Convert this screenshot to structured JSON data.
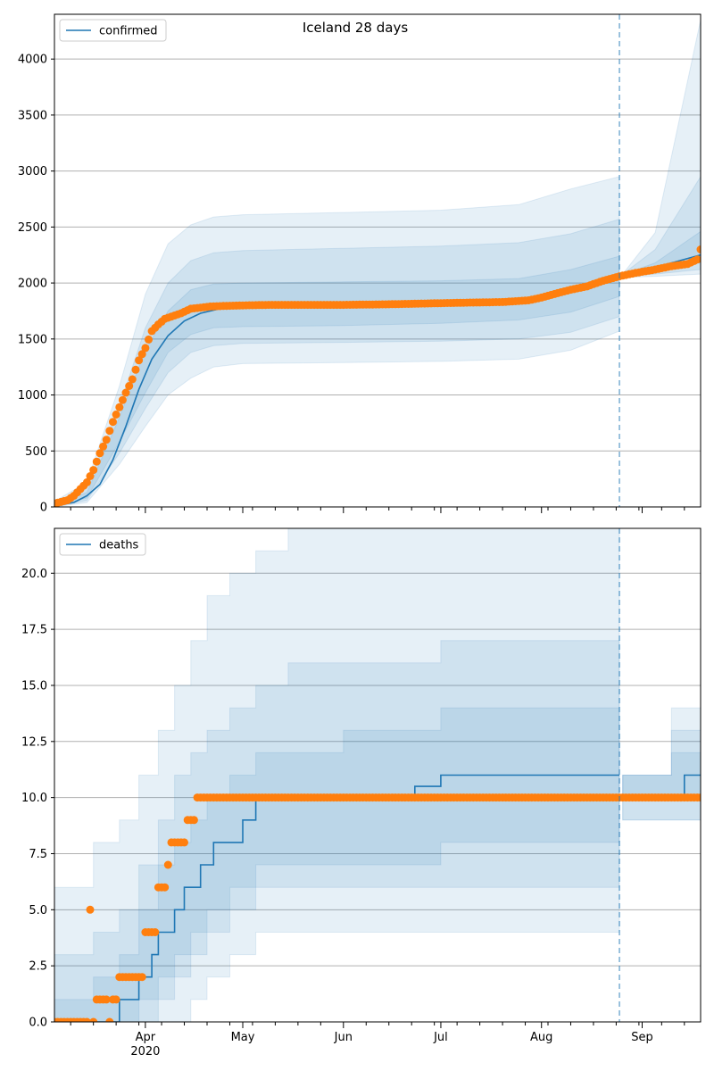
{
  "colors": {
    "line": "#1f77b4",
    "points": "#ff7f0e",
    "band": "#1f77b4",
    "grid": "#b0b0b0",
    "vline": "#1f77b4"
  },
  "chart_data": [
    {
      "type": "line",
      "title": "Iceland 28 days",
      "legend": "confirmed",
      "legend_position": "top-left",
      "grid": "horizontal",
      "xlim": [
        "2020-03-04",
        "2020-09-19"
      ],
      "ylim": [
        0,
        4400
      ],
      "yticks": [
        0,
        500,
        1000,
        1500,
        2000,
        2500,
        3000,
        3500,
        4000
      ],
      "ytick_labels": [
        "0",
        "500",
        "1000",
        "1500",
        "2000",
        "2500",
        "3000",
        "3500",
        "4000"
      ],
      "forecast_start": "2020-08-25",
      "median": {
        "x": [
          "2020-03-04",
          "2020-03-10",
          "2020-03-14",
          "2020-03-18",
          "2020-03-22",
          "2020-03-26",
          "2020-03-30",
          "2020-04-03",
          "2020-04-08",
          "2020-04-13",
          "2020-04-18",
          "2020-04-24",
          "2020-05-05",
          "2020-06-01",
          "2020-07-01",
          "2020-07-25",
          "2020-08-05",
          "2020-08-15",
          "2020-08-25",
          "2020-09-05",
          "2020-09-19"
        ],
        "y": [
          10,
          40,
          100,
          200,
          420,
          720,
          1050,
          1320,
          1530,
          1660,
          1730,
          1770,
          1790,
          1800,
          1820,
          1850,
          1900,
          1990,
          2070,
          2140,
          2250
        ]
      },
      "observed": {
        "x": [
          "2020-03-04",
          "2020-03-06",
          "2020-03-08",
          "2020-03-10",
          "2020-03-12",
          "2020-03-14",
          "2020-03-16",
          "2020-03-18",
          "2020-03-20",
          "2020-03-22",
          "2020-03-24",
          "2020-03-26",
          "2020-03-28",
          "2020-03-30",
          "2020-04-01",
          "2020-04-03",
          "2020-04-05",
          "2020-04-07",
          "2020-04-09",
          "2020-04-12",
          "2020-04-15",
          "2020-04-18",
          "2020-04-21",
          "2020-04-25",
          "2020-05-01",
          "2020-05-10",
          "2020-05-20",
          "2020-06-01",
          "2020-06-15",
          "2020-07-01",
          "2020-07-10",
          "2020-07-20",
          "2020-07-28",
          "2020-08-01",
          "2020-08-06",
          "2020-08-10",
          "2020-08-15",
          "2020-08-20",
          "2020-08-25",
          "2020-08-30",
          "2020-09-05",
          "2020-09-10",
          "2020-09-15",
          "2020-09-18",
          "2020-09-19"
        ],
        "y": [
          30,
          45,
          60,
          100,
          160,
          220,
          330,
          480,
          600,
          760,
          890,
          1020,
          1140,
          1310,
          1420,
          1570,
          1630,
          1680,
          1700,
          1730,
          1770,
          1780,
          1790,
          1795,
          1800,
          1805,
          1805,
          1805,
          1810,
          1820,
          1825,
          1830,
          1845,
          1870,
          1910,
          1940,
          1970,
          2020,
          2060,
          2090,
          2120,
          2150,
          2170,
          2210,
          2300
        ]
      },
      "bands": [
        {
          "x": [
            "2020-03-04",
            "2020-03-14",
            "2020-03-24",
            "2020-04-01",
            "2020-04-08",
            "2020-04-15",
            "2020-04-22",
            "2020-05-01",
            "2020-06-01",
            "2020-07-01",
            "2020-07-25",
            "2020-08-10",
            "2020-08-25",
            "2020-08-26",
            "2020-09-05",
            "2020-09-19"
          ],
          "lower": [
            0,
            40,
            380,
            720,
            1000,
            1150,
            1250,
            1280,
            1290,
            1300,
            1320,
            1400,
            1570,
            2050,
            2060,
            2080
          ],
          "upper": [
            50,
            220,
            1080,
            1900,
            2350,
            2520,
            2590,
            2610,
            2630,
            2650,
            2700,
            2840,
            2950,
            2080,
            2450,
            4350
          ]
        },
        {
          "x": [
            "2020-03-04",
            "2020-03-14",
            "2020-03-24",
            "2020-04-01",
            "2020-04-08",
            "2020-04-15",
            "2020-04-22",
            "2020-05-01",
            "2020-06-01",
            "2020-07-01",
            "2020-07-25",
            "2020-08-10",
            "2020-08-25",
            "2020-08-26",
            "2020-09-05",
            "2020-09-19"
          ],
          "lower": [
            0,
            60,
            480,
            880,
            1200,
            1380,
            1440,
            1460,
            1470,
            1480,
            1500,
            1560,
            1700,
            2060,
            2080,
            2120
          ],
          "upper": [
            35,
            170,
            900,
            1600,
            2000,
            2200,
            2270,
            2290,
            2310,
            2330,
            2360,
            2440,
            2570,
            2080,
            2300,
            2950
          ]
        },
        {
          "x": [
            "2020-03-04",
            "2020-03-14",
            "2020-03-24",
            "2020-04-01",
            "2020-04-08",
            "2020-04-15",
            "2020-04-22",
            "2020-05-01",
            "2020-06-01",
            "2020-07-01",
            "2020-07-25",
            "2020-08-10",
            "2020-08-25",
            "2020-08-26",
            "2020-09-05",
            "2020-09-19"
          ],
          "lower": [
            3,
            80,
            580,
            1020,
            1380,
            1540,
            1600,
            1610,
            1620,
            1640,
            1670,
            1740,
            1880,
            2065,
            2110,
            2180
          ],
          "upper": [
            22,
            130,
            800,
            1400,
            1750,
            1940,
            1990,
            2000,
            2010,
            2020,
            2040,
            2120,
            2240,
            2075,
            2180,
            2460
          ]
        }
      ],
      "xtick_labels": []
    },
    {
      "type": "line",
      "legend": "deaths",
      "legend_position": "top-left",
      "grid": "horizontal",
      "xlim": [
        "2020-03-04",
        "2020-09-19"
      ],
      "ylim": [
        0,
        22
      ],
      "yticks": [
        0,
        2.5,
        5,
        7.5,
        10,
        12.5,
        15,
        17.5,
        20
      ],
      "ytick_labels": [
        "0.0",
        "2.5",
        "5.0",
        "7.5",
        "10.0",
        "12.5",
        "15.0",
        "17.5",
        "20.0"
      ],
      "forecast_start": "2020-08-25",
      "xticks": [
        "2020-04-01",
        "2020-05-01",
        "2020-06-01",
        "2020-07-01",
        "2020-08-01",
        "2020-09-01"
      ],
      "xtick_labels": [
        "Apr",
        "May",
        "Jun",
        "Jul",
        "Aug",
        "Sep"
      ],
      "year_label": "2020",
      "median_steps": {
        "x": [
          "2020-03-04",
          "2020-03-16",
          "2020-03-24",
          "2020-03-30",
          "2020-04-01",
          "2020-04-03",
          "2020-04-05",
          "2020-04-10",
          "2020-04-13",
          "2020-04-18",
          "2020-04-22",
          "2020-04-26",
          "2020-05-01",
          "2020-05-05",
          "2020-06-01",
          "2020-06-23",
          "2020-07-01",
          "2020-08-25",
          "2020-08-26",
          "2020-09-14",
          "2020-09-19"
        ],
        "y": [
          0,
          0,
          1,
          2,
          2,
          3,
          4,
          5,
          6,
          7,
          8,
          8,
          9,
          10,
          10,
          10.5,
          11,
          11,
          10,
          11,
          11
        ]
      },
      "observed": {
        "x": [
          "2020-03-04",
          "2020-03-06",
          "2020-03-08",
          "2020-03-10",
          "2020-03-12",
          "2020-03-14",
          "2020-03-15",
          "2020-03-16",
          "2020-03-17",
          "2020-03-18",
          "2020-03-19",
          "2020-03-20",
          "2020-03-21",
          "2020-03-22",
          "2020-03-23",
          "2020-03-24",
          "2020-03-25",
          "2020-03-26",
          "2020-03-27",
          "2020-03-28",
          "2020-03-29",
          "2020-03-30",
          "2020-03-31",
          "2020-04-01",
          "2020-04-02",
          "2020-04-03",
          "2020-04-04",
          "2020-04-05",
          "2020-04-06",
          "2020-04-07",
          "2020-04-08",
          "2020-04-09",
          "2020-04-10",
          "2020-04-11",
          "2020-04-12",
          "2020-04-13",
          "2020-04-14",
          "2020-04-15",
          "2020-04-16",
          "2020-04-17",
          "2020-04-18",
          "2020-04-19",
          "2020-04-20",
          "2020-04-21",
          "2020-04-22",
          "2020-04-25",
          "2020-05-01",
          "2020-05-15",
          "2020-06-01",
          "2020-06-15",
          "2020-07-01",
          "2020-07-15",
          "2020-08-01",
          "2020-08-15",
          "2020-08-25",
          "2020-09-05",
          "2020-09-19"
        ],
        "y": [
          0,
          0,
          0,
          0,
          0,
          0,
          5,
          0,
          1,
          1,
          1,
          1,
          0,
          1,
          1,
          2,
          2,
          2,
          2,
          2,
          2,
          2,
          2,
          4,
          4,
          4,
          4,
          6,
          6,
          6,
          7,
          8,
          8,
          8,
          8,
          8,
          9,
          9,
          9,
          10,
          10,
          10,
          10,
          10,
          10,
          10,
          10,
          10,
          10,
          10,
          10,
          10,
          10,
          10,
          10,
          10,
          10
        ]
      },
      "bands_steps": [
        {
          "x": [
            "2020-03-04",
            "2020-03-16",
            "2020-03-24",
            "2020-03-30",
            "2020-04-05",
            "2020-04-10",
            "2020-04-15",
            "2020-04-20",
            "2020-04-27",
            "2020-05-05",
            "2020-05-15",
            "2020-06-01",
            "2020-07-01",
            "2020-08-25",
            "2020-08-26",
            "2020-09-10",
            "2020-09-19"
          ],
          "lower": [
            0,
            0,
            0,
            0,
            0,
            0,
            1,
            2,
            3,
            4,
            4,
            4,
            4,
            4,
            9,
            9,
            9
          ],
          "upper": [
            6,
            8,
            9,
            11,
            13,
            15,
            17,
            19,
            20,
            21,
            22,
            22,
            22,
            22,
            11,
            14,
            17
          ]
        },
        {
          "x": [
            "2020-03-04",
            "2020-03-16",
            "2020-03-24",
            "2020-03-30",
            "2020-04-05",
            "2020-04-10",
            "2020-04-15",
            "2020-04-20",
            "2020-04-27",
            "2020-05-05",
            "2020-05-15",
            "2020-06-01",
            "2020-07-01",
            "2020-08-25",
            "2020-08-26",
            "2020-09-10",
            "2020-09-19"
          ],
          "lower": [
            0,
            0,
            0,
            0,
            1,
            2,
            3,
            4,
            5,
            6,
            6,
            6,
            6,
            6,
            9,
            9,
            10
          ],
          "upper": [
            3,
            4,
            5,
            7,
            9,
            11,
            12,
            13,
            14,
            15,
            16,
            16,
            17,
            17,
            11,
            13,
            15
          ]
        },
        {
          "x": [
            "2020-03-04",
            "2020-03-16",
            "2020-03-24",
            "2020-03-30",
            "2020-04-05",
            "2020-04-10",
            "2020-04-15",
            "2020-04-20",
            "2020-04-27",
            "2020-05-05",
            "2020-05-15",
            "2020-06-01",
            "2020-07-01",
            "2020-08-25",
            "2020-08-26",
            "2020-09-10",
            "2020-09-19"
          ],
          "lower": [
            0,
            0,
            0,
            1,
            2,
            3,
            4,
            5,
            6,
            7,
            7,
            7,
            8,
            8,
            10,
            10,
            10
          ],
          "upper": [
            1,
            2,
            3,
            5,
            7,
            8,
            9,
            10,
            11,
            12,
            12,
            13,
            14,
            14,
            11,
            12,
            13
          ]
        }
      ]
    }
  ]
}
